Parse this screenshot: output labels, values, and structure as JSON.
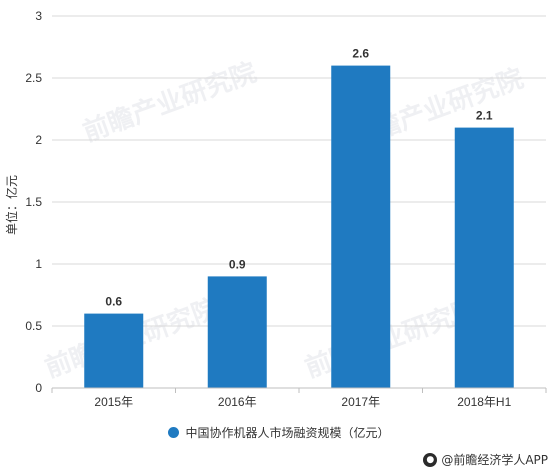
{
  "chart_data": {
    "type": "bar",
    "categories": [
      "2015年",
      "2016年",
      "2017年",
      "2018年H1"
    ],
    "series": [
      {
        "name": "中国协作机器人市场融资规模（亿元）",
        "values": [
          0.6,
          0.9,
          2.6,
          2.1
        ]
      }
    ],
    "data_labels": [
      "0.6",
      "0.9",
      "2.6",
      "2.1"
    ],
    "title": "",
    "xlabel": "",
    "ylabel": "单位：亿元",
    "ylim": [
      0,
      3
    ],
    "yticks": [
      0,
      0.5,
      1,
      1.5,
      2,
      2.5,
      3
    ],
    "ytick_labels": [
      "0",
      "0.5",
      "1",
      "1.5",
      "2",
      "2.5",
      "3"
    ],
    "grid": "horizontal",
    "legend_position": "bottom-center",
    "bar_color": "#1f7ac1",
    "grid_color": "#d9d9d9"
  },
  "watermark": {
    "text": "前瞻产业研究院"
  },
  "source": {
    "icon": "wechat-icon",
    "text": "@前瞻经济学人APP"
  }
}
